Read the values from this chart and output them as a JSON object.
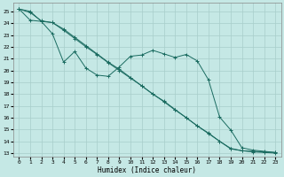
{
  "xlabel": "Humidex (Indice chaleur)",
  "background_color": "#c5e8e5",
  "grid_color": "#a8ceca",
  "line_color": "#1a6b60",
  "xlim": [
    -0.5,
    23.5
  ],
  "ylim": [
    12.7,
    25.7
  ],
  "yticks": [
    13,
    14,
    15,
    16,
    17,
    18,
    19,
    20,
    21,
    22,
    23,
    24,
    25
  ],
  "xticks": [
    0,
    1,
    2,
    3,
    4,
    5,
    6,
    7,
    8,
    9,
    10,
    11,
    12,
    13,
    14,
    15,
    16,
    17,
    18,
    19,
    20,
    21,
    22,
    23
  ],
  "line1_x": [
    0,
    1,
    2,
    3,
    4,
    5,
    6,
    7,
    8,
    9,
    10,
    11,
    12,
    13,
    14,
    15,
    16,
    17,
    18,
    19,
    20,
    21,
    22,
    23
  ],
  "line1_y": [
    25.2,
    25.0,
    24.15,
    24.05,
    23.5,
    22.8,
    22.1,
    21.4,
    20.7,
    20.1,
    19.4,
    18.7,
    18.0,
    17.4,
    16.7,
    16.0,
    15.3,
    14.7,
    14.0,
    13.4,
    13.2,
    13.15,
    13.1,
    13.05
  ],
  "line2_x": [
    0,
    1,
    2,
    3,
    4,
    5,
    6,
    7,
    8,
    9,
    10,
    11,
    12,
    13,
    14,
    15,
    16,
    17,
    18,
    19,
    20,
    21,
    22,
    23
  ],
  "line2_y": [
    25.2,
    24.25,
    24.15,
    23.1,
    20.7,
    21.6,
    20.2,
    19.6,
    19.5,
    20.3,
    21.2,
    21.3,
    21.7,
    21.4,
    21.1,
    21.35,
    20.8,
    19.2,
    16.05,
    14.95,
    13.45,
    13.25,
    13.15,
    13.05
  ],
  "line3_x": [
    0,
    1,
    2,
    3,
    4,
    5,
    6,
    7,
    8,
    9,
    10,
    11,
    12,
    13,
    14,
    15,
    16,
    17,
    18,
    19,
    20,
    21,
    22,
    23
  ],
  "line3_y": [
    25.2,
    24.9,
    24.2,
    24.05,
    23.4,
    22.7,
    22.0,
    21.35,
    20.65,
    20.0,
    19.35,
    18.7,
    18.0,
    17.35,
    16.65,
    16.0,
    15.3,
    14.65,
    14.0,
    13.35,
    13.2,
    13.1,
    13.05,
    13.0
  ]
}
